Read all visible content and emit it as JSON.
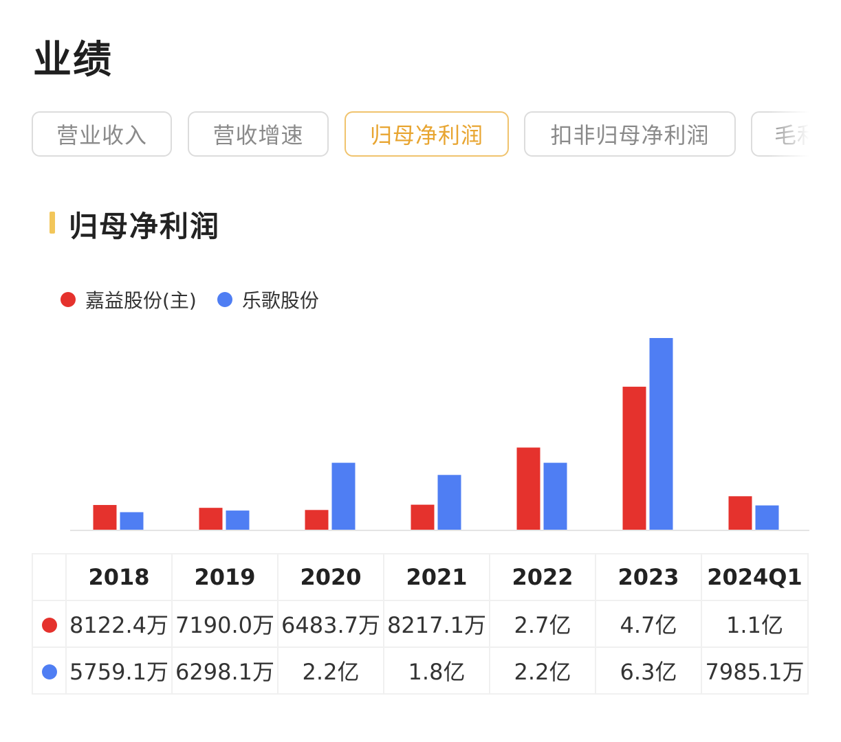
{
  "page": {
    "title": "业绩"
  },
  "tabs": [
    {
      "label": "营业收入",
      "active": false
    },
    {
      "label": "营收增速",
      "active": false
    },
    {
      "label": "归母净利润",
      "active": true
    },
    {
      "label": "扣非归母净利润",
      "active": false
    },
    {
      "label": "毛利率",
      "active": false
    }
  ],
  "section": {
    "title": "归母净利润"
  },
  "colors": {
    "accent": "#e8a531",
    "accent_bar": "#f2c65a",
    "series1": "#e5322d",
    "series2": "#4f7ef3"
  },
  "chart_data": {
    "type": "bar",
    "categories": [
      "2018",
      "2019",
      "2020",
      "2021",
      "2022",
      "2023",
      "2024Q1"
    ],
    "series": [
      {
        "name": "嘉益股份(主)",
        "color": "#e5322d",
        "values": [
          8122.4,
          7190.0,
          6483.7,
          8217.1,
          27000,
          47000,
          11000
        ],
        "display": [
          "8122.4万",
          "7190.0万",
          "6483.7万",
          "8217.1万",
          "2.7亿",
          "4.7亿",
          "1.1亿"
        ]
      },
      {
        "name": "乐歌股份",
        "color": "#4f7ef3",
        "values": [
          5759.1,
          6298.1,
          22000,
          18000,
          22000,
          63000,
          7985.1
        ],
        "display": [
          "5759.1万",
          "6298.1万",
          "2.2亿",
          "1.8亿",
          "2.2亿",
          "6.3亿",
          "7985.1万"
        ]
      }
    ],
    "unit": "万",
    "ylim": [
      0,
      63000
    ],
    "legend": "top-left",
    "grid": false
  }
}
